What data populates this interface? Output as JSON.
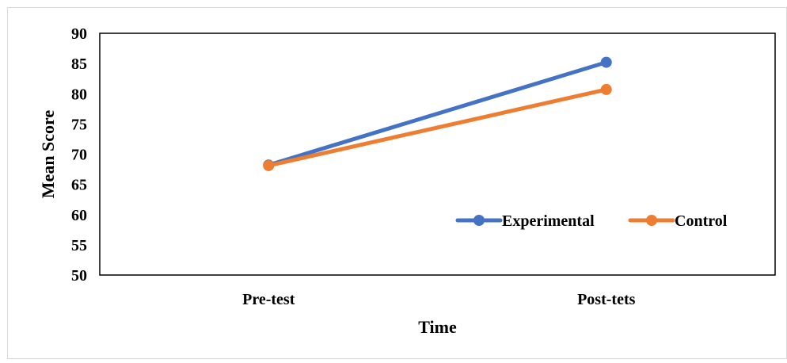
{
  "chart_data": {
    "type": "line",
    "title": "",
    "xlabel": "Time",
    "ylabel": "Mean Score",
    "categories": [
      "Pre-test",
      "Post-tets"
    ],
    "ylim": [
      50,
      90
    ],
    "yticks": [
      50,
      55,
      60,
      65,
      70,
      75,
      80,
      85,
      90
    ],
    "grid": false,
    "legend_position": "bottom-right",
    "series": [
      {
        "name": "Experimental",
        "values": [
          68.2,
          85.2
        ],
        "color": "#4472C4"
      },
      {
        "name": "Control",
        "values": [
          68.1,
          80.7
        ],
        "color": "#ED7D31"
      }
    ]
  }
}
